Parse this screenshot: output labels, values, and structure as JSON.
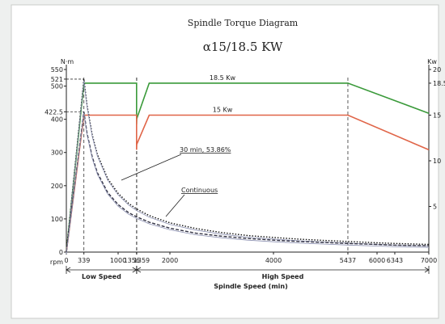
{
  "chart_data": {
    "type": "line",
    "title": "Spindle Torque Diagram",
    "subtitle": "α15/18.5 KW",
    "xlabel": "Spindle Speed (min)",
    "x_unit_label": "rpm",
    "ylabel_left": "N·m",
    "ylabel_right": "Kw",
    "xlim": [
      0,
      7000
    ],
    "ylim_left": [
      0,
      550
    ],
    "ylim_right": [
      0,
      20
    ],
    "x_ticks": [
      {
        "value": 0,
        "label": "0"
      },
      {
        "value": 339,
        "label": "339"
      },
      {
        "value": 1000,
        "label": "1000"
      },
      {
        "value": 1356,
        "label": "1356"
      },
      {
        "value": 1359,
        "label": "1359"
      },
      {
        "value": 2000,
        "label": "2000"
      },
      {
        "value": 4000,
        "label": "4000"
      },
      {
        "value": 5437,
        "label": "5437"
      },
      {
        "value": 6000,
        "label": "6000"
      },
      {
        "value": 6343,
        "label": "6343"
      },
      {
        "value": 7000,
        "label": "7000"
      }
    ],
    "y_ticks_left": [
      {
        "value": 0,
        "label": "0"
      },
      {
        "value": 100,
        "label": "100"
      },
      {
        "value": 200,
        "label": "200"
      },
      {
        "value": 300,
        "label": "300"
      },
      {
        "value": 400,
        "label": "400"
      },
      {
        "value": 422.5,
        "label": "422.5"
      },
      {
        "value": 500,
        "label": "500"
      },
      {
        "value": 521,
        "label": "521"
      },
      {
        "value": 550,
        "label": "550"
      }
    ],
    "y_ticks_right": [
      {
        "value": 5,
        "label": "5"
      },
      {
        "value": 10,
        "label": "10"
      },
      {
        "value": 15,
        "label": "15"
      },
      {
        "value": 18.5,
        "label": "18.5"
      },
      {
        "value": 20,
        "label": "20"
      }
    ],
    "ranges": [
      {
        "label": "Low Speed",
        "from": 0,
        "to": 1356
      },
      {
        "label": "High Speed",
        "from": 1359,
        "to": 7000
      }
    ],
    "series": [
      {
        "name": "18.5 Kw",
        "axis": "right",
        "color": "#3a9a3a",
        "style": "solid",
        "x": [
          0,
          339,
          1356,
          1356,
          1359,
          1600,
          5437,
          7000
        ],
        "y": [
          0,
          18.5,
          18.5,
          14.0,
          14.6,
          18.5,
          18.5,
          15.2
        ]
      },
      {
        "name": "15 Kw",
        "axis": "right",
        "color": "#e06548",
        "style": "solid",
        "x": [
          0,
          339,
          1356,
          1356,
          1359,
          1600,
          5437,
          7000
        ],
        "y": [
          0,
          15,
          15,
          11.2,
          11.8,
          15,
          15,
          11.2
        ]
      },
      {
        "name": "30 min, 53.86%",
        "axis": "left",
        "color": "#111111",
        "style": "dotted",
        "x": [
          0,
          339,
          400,
          500,
          600,
          800,
          1000,
          1200,
          1356,
          1359,
          1600,
          2000,
          2500,
          3000,
          3500,
          4000,
          4500,
          5000,
          5437,
          6000,
          6343,
          7000
        ],
        "y": [
          0,
          521,
          442,
          353,
          294,
          221,
          177,
          147,
          130,
          130,
          110,
          88,
          71,
          59,
          50,
          44,
          39,
          35,
          32,
          28,
          26,
          23
        ]
      },
      {
        "name": "Continuous",
        "axis": "left",
        "color": "#333344",
        "style": "dashed",
        "x": [
          0,
          339,
          400,
          500,
          600,
          800,
          1000,
          1200,
          1356,
          1359,
          1600,
          2000,
          2500,
          3000,
          3500,
          4000,
          4500,
          5000,
          5437,
          6000,
          6343,
          7000
        ],
        "y": [
          0,
          422.5,
          358,
          287,
          239,
          179,
          143,
          119,
          106,
          106,
          90,
          72,
          57,
          48,
          41,
          36,
          32,
          29,
          26,
          23,
          21,
          19
        ]
      }
    ],
    "annotations": [
      {
        "text": "18.5 Kw"
      },
      {
        "text": "15 Kw"
      },
      {
        "text": "30 min, 53.86%"
      },
      {
        "text": "Continuous"
      }
    ],
    "grid": false,
    "legend": "none"
  }
}
